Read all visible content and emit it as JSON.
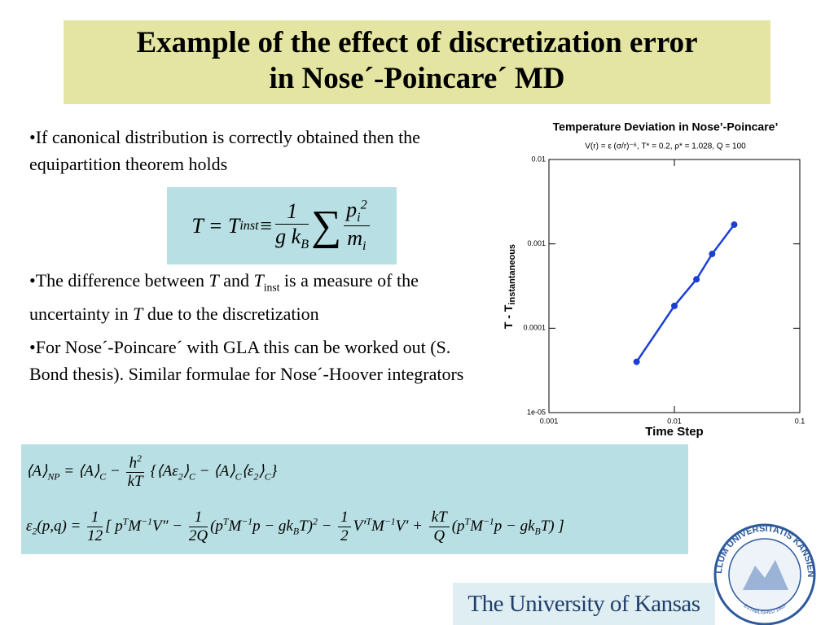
{
  "title": [
    "Example of the effect of discretization error",
    "in Nose´-Poincare´ MD"
  ],
  "bullets": [
    [
      "•If canonical distribution is correctly obtained then the equipartition theorem holds"
    ],
    [
      "•The difference between ",
      {
        "i": "T"
      },
      " and ",
      {
        "i": "T"
      },
      {
        "sub": "inst"
      },
      " is a measure of the uncertainty in ",
      {
        "i": "T"
      },
      " due to the discretization"
    ],
    [
      "•For Nose´-Poincare´ with GLA this can be worked out (S. Bond thesis). Similar formulae for Nose´-Hoover integrators"
    ]
  ],
  "formula1": [
    "T = T",
    {
      "sub": "inst"
    },
    " ≡ ",
    {
      "num": [
        "1"
      ],
      "den": [
        "g k",
        {
          "sub": "B"
        }
      ]
    },
    {
      "big": "∑"
    },
    {
      "num": [
        "p",
        {
          "sub": "i"
        },
        {
          "sup": "2"
        }
      ],
      "den": [
        "m",
        {
          "sub": "i"
        }
      ]
    }
  ],
  "formula2": [
    "⟨A⟩",
    {
      "sub": "NP"
    },
    " = ⟨A⟩",
    {
      "sub": "C"
    },
    " − ",
    {
      "num": [
        "h",
        {
          "sup": "2"
        }
      ],
      "den": [
        "kT"
      ]
    },
    " {⟨Aε",
    {
      "sub": "2"
    },
    "⟩",
    {
      "sub": "C"
    },
    " − ⟨A⟩",
    {
      "sub": "C"
    },
    "⟨ε",
    {
      "sub": "2"
    },
    "⟩",
    {
      "sub": "C"
    },
    "}"
  ],
  "formula3": [
    "ε",
    {
      "sub": "2"
    },
    "(p,q) = ",
    {
      "num": [
        "1"
      ],
      "den": [
        "12"
      ]
    },
    "[ p",
    {
      "sup": "T"
    },
    "M",
    {
      "sup": "−1"
    },
    "V″ − ",
    {
      "num": [
        "1"
      ],
      "den": [
        "2Q"
      ]
    },
    "(p",
    {
      "sup": "T"
    },
    "M",
    {
      "sup": "−1"
    },
    "p − gk",
    {
      "sub": "B"
    },
    "T)",
    {
      "sup": "2"
    },
    " − ",
    {
      "num": [
        "1"
      ],
      "den": [
        "2"
      ]
    },
    "V′",
    {
      "sup": "T"
    },
    "M",
    {
      "sup": "−1"
    },
    "V′ + ",
    {
      "num": [
        "kT"
      ],
      "den": [
        "Q"
      ]
    },
    "(p",
    {
      "sup": "T"
    },
    "M",
    {
      "sup": "−1"
    },
    "p − gk",
    {
      "sub": "B"
    },
    "T) ]"
  ],
  "logo": {
    "name": "The University of Kansas",
    "seal_top": "SIGILLUM UNIVERSITATIS KANSIENSIS",
    "seal_bottom": "ESTABLISHED 1865"
  },
  "chart_data": {
    "type": "line",
    "title": "Temperature Deviation in Nose’-Poincare’",
    "subtitle": "V(r) = ε (σ/r)⁻⁶, T* = 0.2, ρ* = 1.028, Q = 100",
    "x_label": "Time Step",
    "y_label": "T - T",
    "y_label_sub": "instantaneous",
    "x": [
      0.005,
      0.01,
      0.015,
      0.02,
      0.03
    ],
    "values": [
      4e-05,
      0.000184,
      0.00038,
      0.00076,
      0.00169
    ],
    "color": "#1b3fd4",
    "xlog": true,
    "ylog": true,
    "xlim": [
      0.001,
      0.1
    ],
    "xticks": [
      0.001,
      0.01,
      0.1
    ],
    "ylim": [
      1e-05,
      0.01
    ],
    "yticks": [
      {
        "value": 1e-05,
        "label": "1e-05"
      },
      0.0001,
      0.001,
      0.01
    ]
  }
}
